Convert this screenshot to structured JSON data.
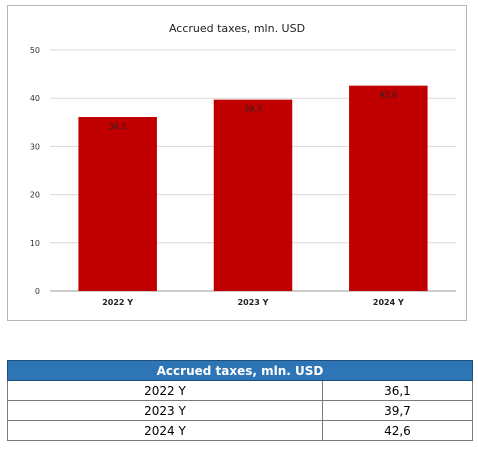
{
  "chart_data": {
    "type": "bar",
    "title": "Accrued taxes, mln. USD",
    "categories": [
      "2022 Y",
      "2023 Y",
      "2024 Y"
    ],
    "values": [
      36.1,
      39.7,
      42.6
    ],
    "data_labels": [
      "36,1",
      "39,7",
      "42,6"
    ],
    "ylim": [
      0,
      50
    ],
    "yticks": [
      0,
      10,
      20,
      30,
      40,
      50
    ],
    "grid": true,
    "bar_color": "#c00000",
    "xlabel": "",
    "ylabel": ""
  },
  "table": {
    "header": "Accrued taxes, mln. USD",
    "header_color": "#2e75b6",
    "rows": [
      {
        "year": "2022 Y",
        "value": "36,1"
      },
      {
        "year": "2023 Y",
        "value": "39,7"
      },
      {
        "year": "2024 Y",
        "value": "42,6"
      }
    ]
  }
}
